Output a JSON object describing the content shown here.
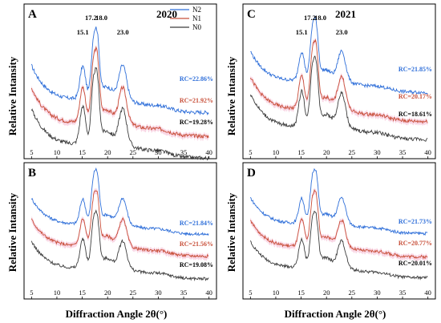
{
  "figure": {
    "y_axis_label": "Relative Intansity",
    "x_axis_label": "Diffraction Angle 2θ(°)"
  },
  "colors": {
    "N2": "#2f6fd9",
    "N1": "#c8503a",
    "N0": "#3c3c3c",
    "band": "#f8d0e0"
  },
  "chart_data": [
    {
      "panel": "A",
      "year": "2020",
      "type": "line",
      "xlim": [
        4,
        41
      ],
      "x_ticks": [
        "5",
        "10",
        "15",
        "20",
        "25",
        "30",
        "35",
        "40"
      ],
      "peak_labels": [
        "15.1",
        "17.2",
        "18.0",
        "23.0"
      ],
      "legend": [
        "N2",
        "N1",
        "N0"
      ],
      "series": [
        {
          "name": "N2",
          "rc_label": "RC=22.86%",
          "rc": 22.86
        },
        {
          "name": "N1",
          "rc_label": "RC=21.92%",
          "rc": 21.92
        },
        {
          "name": "N0",
          "rc_label": "RC=19.28%",
          "rc": 19.28
        }
      ]
    },
    {
      "panel": "B",
      "year": "",
      "type": "line",
      "xlim": [
        4,
        41
      ],
      "x_ticks": [
        "5",
        "10",
        "15",
        "20",
        "25",
        "30",
        "35",
        "40"
      ],
      "peak_labels": [],
      "legend": [],
      "series": [
        {
          "name": "N2",
          "rc_label": "RC=21.84%",
          "rc": 21.84
        },
        {
          "name": "N1",
          "rc_label": "RC=21.56%",
          "rc": 21.56
        },
        {
          "name": "N0",
          "rc_label": "RC=19.08%",
          "rc": 19.08
        }
      ]
    },
    {
      "panel": "C",
      "year": "2021",
      "type": "line",
      "xlim": [
        4,
        41
      ],
      "x_ticks": [
        "5",
        "10",
        "15",
        "20",
        "25",
        "30",
        "35",
        "40"
      ],
      "peak_labels": [
        "15.1",
        "17.2",
        "18.0",
        "23.0"
      ],
      "legend": [],
      "series": [
        {
          "name": "N2",
          "rc_label": "RC=21.85%",
          "rc": 21.85
        },
        {
          "name": "N1",
          "rc_label": "RC=20.17%",
          "rc": 20.17
        },
        {
          "name": "N0",
          "rc_label": "RC=18.61%",
          "rc": 18.61
        }
      ]
    },
    {
      "panel": "D",
      "year": "",
      "type": "line",
      "xlim": [
        4,
        41
      ],
      "x_ticks": [
        "5",
        "10",
        "15",
        "20",
        "25",
        "30",
        "35",
        "40"
      ],
      "peak_labels": [],
      "legend": [],
      "series": [
        {
          "name": "N2",
          "rc_label": "RC=21.73%",
          "rc": 21.73
        },
        {
          "name": "N1",
          "rc_label": "RC=20.77%",
          "rc": 20.77
        },
        {
          "name": "N0",
          "rc_label": "RC=20.01%",
          "rc": 20.01
        }
      ]
    }
  ]
}
